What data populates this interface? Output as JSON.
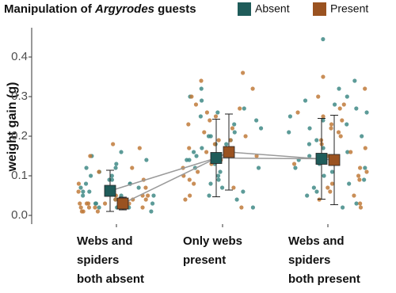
{
  "chart_data": {
    "type": "jitter-means",
    "legend_title": [
      {
        "text": "Manipulation of "
      },
      {
        "text": "Argyrodes",
        "italic": true
      },
      {
        "text": " guests"
      }
    ],
    "y_label": "weight gain (g)",
    "categories": [
      [
        "Webs and",
        "spiders",
        "both absent"
      ],
      [
        "Only webs",
        "present"
      ],
      [
        "Webs and",
        "spiders",
        "both present"
      ]
    ],
    "ylim": [
      -0.022,
      0.474
    ],
    "yticks": [
      {
        "value": 0,
        "label": "0.0"
      },
      0.1,
      0.2,
      0.3,
      0.4
    ],
    "series": [
      {
        "name": "Absent",
        "color": "#1f5c5a",
        "point_color": "#3f8a86",
        "means": [
          0.062,
          0.145,
          0.143
        ],
        "errors": [
          0.052,
          0.098,
          0.102
        ],
        "points": [
          [
            0.12,
            0.05,
            0.08,
            0.03,
            0.1,
            0.02,
            0.06,
            0.14,
            0.04,
            0.09,
            0.11,
            0.07,
            0.02,
            0.05,
            0.13,
            0.03,
            0.08,
            0.06,
            0.16,
            0.04,
            0.1,
            0.07,
            0.01,
            0.05,
            0.12,
            0.09,
            0.03,
            0.15,
            0.06,
            0.04,
            0.08,
            0.02
          ],
          [
            0.15,
            0.22,
            0.1,
            0.32,
            0.18,
            0.05,
            0.12,
            0.27,
            0.2,
            0.08,
            0.14,
            0.24,
            0.17,
            0.02,
            0.11,
            0.29,
            0.19,
            0.13,
            0.06,
            0.21,
            0.16,
            0.25,
            0.09,
            0.3,
            0.14,
            0.18,
            0.04,
            0.23,
            0.12,
            0.2,
            0.26,
            0.07
          ],
          [
            0.445,
            0.34,
            0.1,
            0.24,
            0.18,
            0.05,
            0.3,
            0.14,
            0.22,
            0.08,
            0.27,
            0.12,
            0.2,
            0.03,
            0.16,
            0.32,
            0.11,
            0.25,
            0.07,
            0.19,
            0.29,
            0.13,
            0.02,
            0.23,
            0.15,
            0.09,
            0.21,
            0.06,
            0.28,
            0.17,
            0.12,
            0.26
          ]
        ]
      },
      {
        "name": "Present",
        "color": "#9a5220",
        "point_color": "#c07a3a",
        "means": [
          0.03,
          0.16,
          0.14
        ],
        "errors": [
          0.016,
          0.096,
          0.113
        ],
        "points": [
          [
            0.18,
            0.04,
            0.02,
            0.06,
            0.03,
            0.17,
            0.05,
            0.01,
            0.08,
            0.02,
            0.04,
            0.12,
            0.03,
            0.07,
            0.02,
            0.05,
            0.15,
            0.03,
            0.01,
            0.06,
            0.04,
            0.02,
            0.09,
            0.03,
            0.05,
            0.02,
            0.11,
            0.04,
            0.01,
            0.03
          ],
          [
            0.34,
            0.16,
            0.2,
            0.08,
            0.28,
            0.12,
            0.22,
            0.05,
            0.18,
            0.3,
            0.14,
            0.25,
            0.1,
            0.36,
            0.19,
            0.02,
            0.24,
            0.15,
            0.27,
            0.07,
            0.21,
            0.13,
            0.17,
            0.32,
            0.09,
            0.23,
            0.11,
            0.26,
            0.04,
            0.19
          ],
          [
            0.35,
            0.3,
            0.22,
            0.12,
            0.06,
            0.18,
            0.26,
            0.09,
            0.2,
            0.15,
            0.03,
            0.24,
            0.14,
            0.32,
            0.1,
            0.19,
            0.07,
            0.28,
            0.16,
            0.02,
            0.23,
            0.11,
            0.21,
            0.05,
            0.25,
            0.13,
            0.17,
            0.08,
            0.27,
            0.04
          ]
        ]
      }
    ]
  }
}
